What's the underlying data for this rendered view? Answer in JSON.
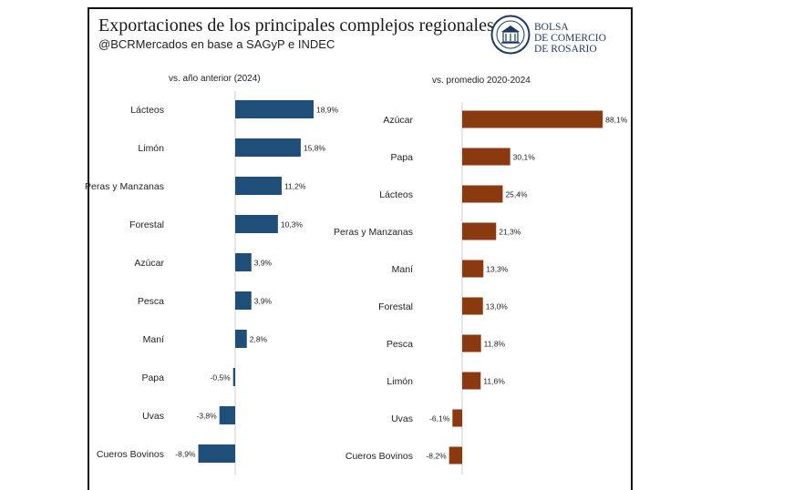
{
  "header": {
    "title": "Exportaciones de los principales complejos regionales",
    "subtitle": "@BCRMercados en base a SAGyP e INDEC"
  },
  "logo": {
    "line1": "BOLSA",
    "line2": "DE COMERCIO",
    "line3": "DE ROSARIO"
  },
  "colors": {
    "left_bar": "#1f4e79",
    "right_bar": "#8b3a0f",
    "axis": "#cfcfcf",
    "logo": "#1f3a5c"
  },
  "chart_data": [
    {
      "type": "bar",
      "orientation": "horizontal",
      "title": "vs. año anterior (2024)",
      "categories": [
        "Lácteos",
        "Limón",
        "Peras y Manzanas",
        "Forestal",
        "Azúcar",
        "Pesca",
        "Maní",
        "Papa",
        "Uvas",
        "Cueros Bovinos"
      ],
      "values": [
        18.9,
        15.8,
        11.2,
        10.3,
        3.9,
        3.9,
        2.8,
        -0.5,
        -3.8,
        -8.9
      ],
      "labels": [
        "18,9%",
        "15,8%",
        "11,2%",
        "10,3%",
        "3,9%",
        "3,9%",
        "2,8%",
        "-0,5%",
        "-3,8%",
        "-8,9%"
      ],
      "unit": "%",
      "grid": false
    },
    {
      "type": "bar",
      "orientation": "horizontal",
      "title": "vs. promedio 2020-2024",
      "categories": [
        "Azúcar",
        "Papa",
        "Lácteos",
        "Peras y Manzanas",
        "Maní",
        "Forestal",
        "Pesca",
        "Limón",
        "Uvas",
        "Cueros Bovinos"
      ],
      "values": [
        88.1,
        30.1,
        25.4,
        21.3,
        13.3,
        13.0,
        11.8,
        11.6,
        -6.1,
        -8.2
      ],
      "labels": [
        "88,1%",
        "30,1%",
        "25,4%",
        "21,3%",
        "13,3%",
        "13,0%",
        "11,8%",
        "11,6%",
        "-6,1%",
        "-8,2%"
      ],
      "unit": "%",
      "grid": false
    }
  ]
}
